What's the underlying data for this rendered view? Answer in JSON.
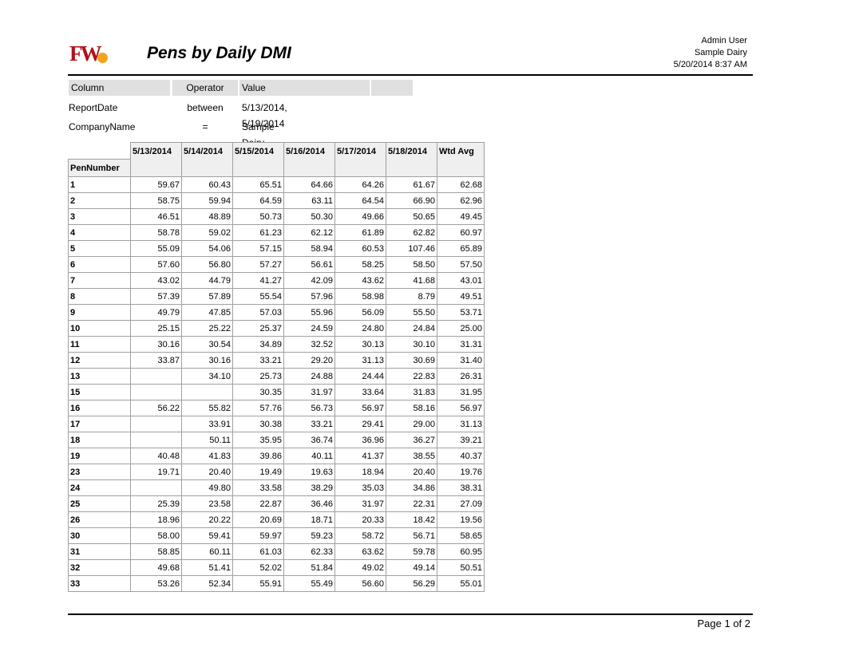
{
  "header": {
    "logo_text": "FW",
    "title": "Pens by Daily DMI",
    "user": "Admin User",
    "company": "Sample Dairy",
    "timestamp": "5/20/2014 8:37 AM"
  },
  "filters": {
    "headers": [
      "Column",
      "Operator",
      "Value",
      ""
    ],
    "rows": [
      {
        "column": "ReportDate",
        "operator": "between",
        "value": "5/13/2014, 5/19/2014"
      },
      {
        "column": "CompanyName",
        "operator": "=",
        "value": "Sample Dairy"
      }
    ]
  },
  "table": {
    "row_header": "PenNumber",
    "columns": [
      "5/13/2014",
      "5/14/2014",
      "5/15/2014",
      "5/16/2014",
      "5/17/2014",
      "5/18/2014",
      "Wtd Avg"
    ],
    "rows": [
      [
        "1",
        "59.67",
        "60.43",
        "65.51",
        "64.66",
        "64.26",
        "61.67",
        "62.68"
      ],
      [
        "2",
        "58.75",
        "59.94",
        "64.59",
        "63.11",
        "64.54",
        "66.90",
        "62.96"
      ],
      [
        "3",
        "46.51",
        "48.89",
        "50.73",
        "50.30",
        "49.66",
        "50.65",
        "49.45"
      ],
      [
        "4",
        "58.78",
        "59.02",
        "61.23",
        "62.12",
        "61.89",
        "62.82",
        "60.97"
      ],
      [
        "5",
        "55.09",
        "54.06",
        "57.15",
        "58.94",
        "60.53",
        "107.46",
        "65.89"
      ],
      [
        "6",
        "57.60",
        "56.80",
        "57.27",
        "56.61",
        "58.25",
        "58.50",
        "57.50"
      ],
      [
        "7",
        "43.02",
        "44.79",
        "41.27",
        "42.09",
        "43.62",
        "41.68",
        "43.01"
      ],
      [
        "8",
        "57.39",
        "57.89",
        "55.54",
        "57.96",
        "58.98",
        "8.79",
        "49.51"
      ],
      [
        "9",
        "49.79",
        "47.85",
        "57.03",
        "55.96",
        "56.09",
        "55.50",
        "53.71"
      ],
      [
        "10",
        "25.15",
        "25.22",
        "25.37",
        "24.59",
        "24.80",
        "24.84",
        "25.00"
      ],
      [
        "11",
        "30.16",
        "30.54",
        "34.89",
        "32.52",
        "30.13",
        "30.10",
        "31.31"
      ],
      [
        "12",
        "33.87",
        "30.16",
        "33.21",
        "29.20",
        "31.13",
        "30.69",
        "31.40"
      ],
      [
        "13",
        "",
        "34.10",
        "25.73",
        "24.88",
        "24.44",
        "22.83",
        "26.31"
      ],
      [
        "15",
        "",
        "",
        "30.35",
        "31.97",
        "33.64",
        "31.83",
        "31.95"
      ],
      [
        "16",
        "56.22",
        "55.82",
        "57.76",
        "56.73",
        "56.97",
        "58.16",
        "56.97"
      ],
      [
        "17",
        "",
        "33.91",
        "30.38",
        "33.21",
        "29.41",
        "29.00",
        "31.13"
      ],
      [
        "18",
        "",
        "50.11",
        "35.95",
        "36.74",
        "36.96",
        "36.27",
        "39.21"
      ],
      [
        "19",
        "40.48",
        "41.83",
        "39.86",
        "40.11",
        "41.37",
        "38.55",
        "40.37"
      ],
      [
        "23",
        "19.71",
        "20.40",
        "19.49",
        "19.63",
        "18.94",
        "20.40",
        "19.76"
      ],
      [
        "24",
        "",
        "49.80",
        "33.58",
        "38.29",
        "35.03",
        "34.86",
        "38.31"
      ],
      [
        "25",
        "25.39",
        "23.58",
        "22.87",
        "36.46",
        "31.97",
        "22.31",
        "27.09"
      ],
      [
        "26",
        "18.96",
        "20.22",
        "20.69",
        "18.71",
        "20.33",
        "18.42",
        "19.56"
      ],
      [
        "30",
        "58.00",
        "59.41",
        "59.97",
        "59.23",
        "58.72",
        "56.71",
        "58.65"
      ],
      [
        "31",
        "58.85",
        "60.11",
        "61.03",
        "62.33",
        "63.62",
        "59.78",
        "60.95"
      ],
      [
        "32",
        "49.68",
        "51.41",
        "52.02",
        "51.84",
        "49.02",
        "49.14",
        "50.51"
      ],
      [
        "33",
        "53.26",
        "52.34",
        "55.91",
        "55.49",
        "56.60",
        "56.29",
        "55.01"
      ]
    ]
  },
  "footer": {
    "page_label": "Page 1 of 2"
  }
}
